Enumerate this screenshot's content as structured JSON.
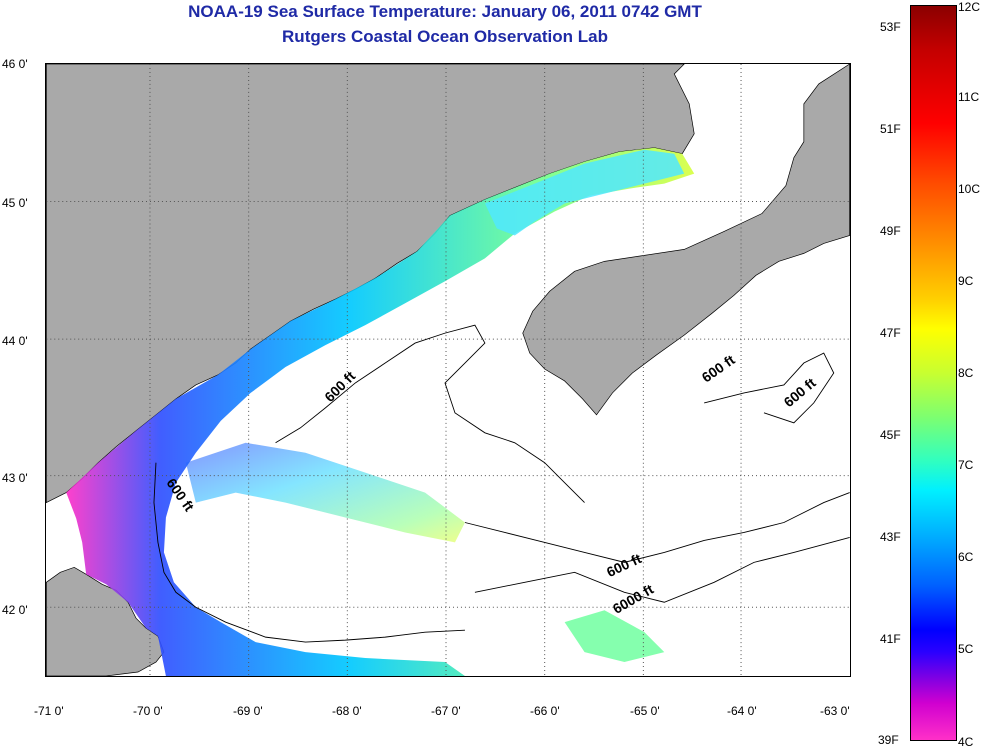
{
  "title": {
    "line1": "NOAA-19 Sea Surface Temperature:  January 06, 2011 0742 GMT",
    "line2": "Rutgers Coastal Ocean Observation Lab"
  },
  "map": {
    "lat_ticks": [
      "46 0'",
      "45 0'",
      "44 0'",
      "43 0'",
      "42 0'"
    ],
    "lon_ticks": [
      "-71 0'",
      "-70 0'",
      "-69 0'",
      "-68 0'",
      "-67 0'",
      "-66 0'",
      "-65 0'",
      "-64 0'",
      "-63 0'"
    ],
    "contour_labels": [
      "600 ft",
      "600 ft",
      "600 ft",
      "600 ft",
      "600 ft",
      "6000 ft"
    ],
    "colors": {
      "land": "#a9a9a9",
      "no_data": "#ffffff",
      "grid": "#555555"
    }
  },
  "colorbar": {
    "celsius": [
      "12C",
      "11C",
      "10C",
      "9C",
      "8C",
      "7C",
      "6C",
      "5C",
      "4C"
    ],
    "fahrenheit": [
      "53F",
      "51F",
      "49F",
      "47F",
      "45F",
      "43F",
      "41F",
      "39F"
    ]
  }
}
